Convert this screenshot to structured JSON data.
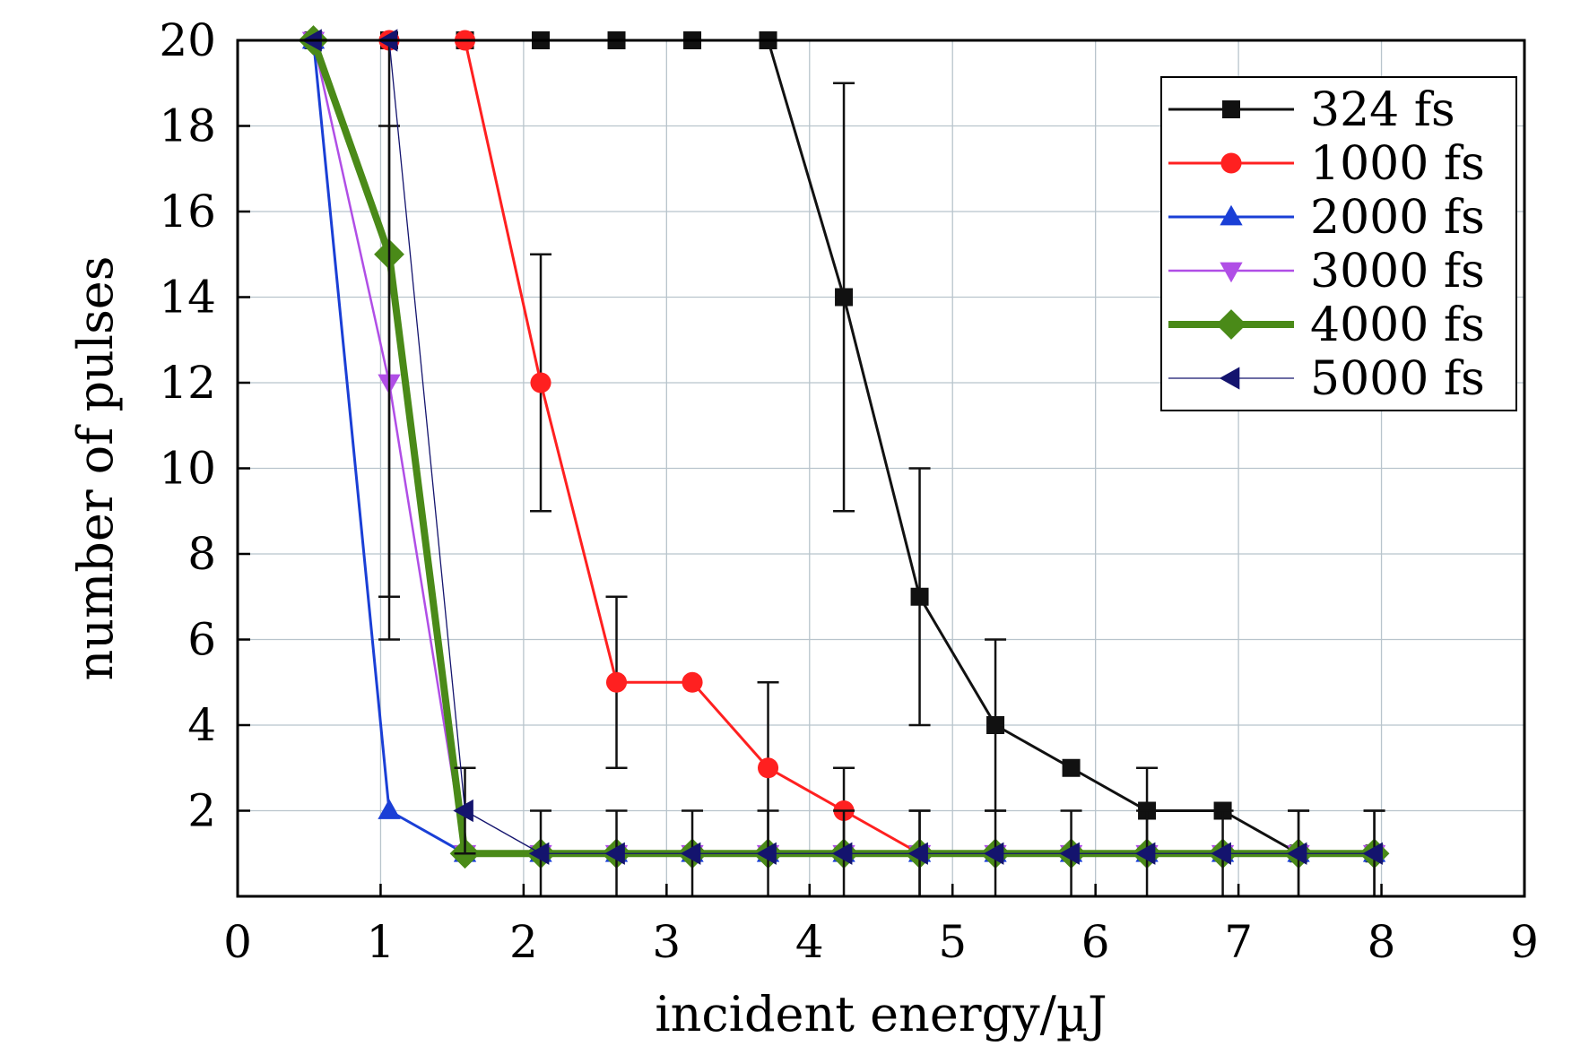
{
  "chart_data": {
    "type": "line",
    "xlabel": "incident energy/µJ",
    "ylabel": "number of pulses",
    "xlim": [
      0,
      9
    ],
    "ylim": [
      0,
      20
    ],
    "xticks": [
      0,
      1,
      2,
      3,
      4,
      5,
      6,
      7,
      8,
      9
    ],
    "yticks": [
      2,
      4,
      6,
      8,
      10,
      12,
      14,
      16,
      18,
      20
    ],
    "grid": true,
    "legend_position": "top-right",
    "series": [
      {
        "name": "324 fs",
        "color": "#111111",
        "marker": "square",
        "x": [
          0.53,
          1.06,
          1.59,
          2.12,
          2.65,
          3.18,
          3.71,
          4.24,
          4.77,
          5.3,
          5.83,
          6.36,
          6.89,
          7.42,
          7.95
        ],
        "y": [
          20,
          20,
          20,
          20,
          20,
          20,
          20,
          14,
          7,
          4,
          3,
          2,
          2,
          1,
          1
        ],
        "error": [
          null,
          null,
          null,
          null,
          null,
          null,
          null,
          5,
          3,
          2,
          null,
          1,
          null,
          1,
          1
        ]
      },
      {
        "name": "1000 fs",
        "color": "#ff2020",
        "marker": "circle",
        "x": [
          0.53,
          1.06,
          1.59,
          2.12,
          2.65,
          3.18,
          3.71,
          4.24,
          4.77,
          5.3,
          5.83,
          6.36,
          6.89,
          7.42,
          7.95
        ],
        "y": [
          20,
          20,
          20,
          12,
          5,
          5,
          3,
          2,
          1,
          1,
          1,
          1,
          1,
          1,
          1
        ],
        "error": [
          null,
          null,
          null,
          3,
          2,
          null,
          2,
          1,
          1,
          null,
          null,
          null,
          null,
          null,
          null
        ]
      },
      {
        "name": "2000 fs",
        "color": "#1a3fd6",
        "marker": "triangle-up",
        "x": [
          0.53,
          1.06,
          1.59,
          2.12,
          2.65,
          3.18,
          3.71,
          4.24,
          4.77,
          5.3,
          5.83,
          6.36,
          6.89,
          7.42,
          7.95
        ],
        "y": [
          20,
          2,
          1,
          1,
          1,
          1,
          1,
          1,
          1,
          1,
          1,
          1,
          1,
          1,
          1
        ],
        "error": [
          null,
          null,
          null,
          null,
          null,
          null,
          null,
          null,
          null,
          null,
          null,
          null,
          null,
          null,
          null
        ]
      },
      {
        "name": "3000 fs",
        "color": "#b04ee6",
        "marker": "triangle-down",
        "x": [
          0.53,
          1.06,
          1.59,
          2.12,
          2.65,
          3.18,
          3.71,
          4.24,
          4.77,
          5.3,
          5.83,
          6.36,
          6.89,
          7.42,
          7.95
        ],
        "y": [
          20,
          12,
          1,
          1,
          1,
          1,
          1,
          1,
          1,
          1,
          1,
          1,
          1,
          1,
          1
        ],
        "error": [
          null,
          6,
          null,
          null,
          null,
          null,
          null,
          null,
          null,
          null,
          null,
          null,
          null,
          null,
          null
        ]
      },
      {
        "name": "4000 fs",
        "color": "#4a8a18",
        "marker": "diamond",
        "x": [
          0.53,
          1.06,
          1.59,
          2.12,
          2.65,
          3.18,
          3.71,
          4.24,
          4.77,
          5.3,
          5.83,
          6.36,
          6.89,
          7.42,
          7.95
        ],
        "y": [
          20,
          15,
          1,
          1,
          1,
          1,
          1,
          1,
          1,
          1,
          1,
          1,
          1,
          1,
          1
        ],
        "error": [
          null,
          null,
          null,
          null,
          null,
          null,
          null,
          null,
          null,
          null,
          null,
          null,
          null,
          null,
          null
        ]
      },
      {
        "name": "5000 fs",
        "color": "#14146e",
        "marker": "triangle-left",
        "x": [
          0.53,
          1.06,
          1.59,
          2.12,
          2.65,
          3.18,
          3.71,
          4.24,
          4.77,
          5.3,
          5.83,
          6.36,
          6.89,
          7.42,
          7.95
        ],
        "y": [
          20,
          20,
          2,
          1,
          1,
          1,
          1,
          1,
          1,
          1,
          1,
          1,
          1,
          1,
          1
        ],
        "error": [
          null,
          13,
          1,
          1,
          1,
          1,
          1,
          1,
          1,
          1,
          1,
          1,
          1,
          1,
          1
        ]
      }
    ]
  }
}
